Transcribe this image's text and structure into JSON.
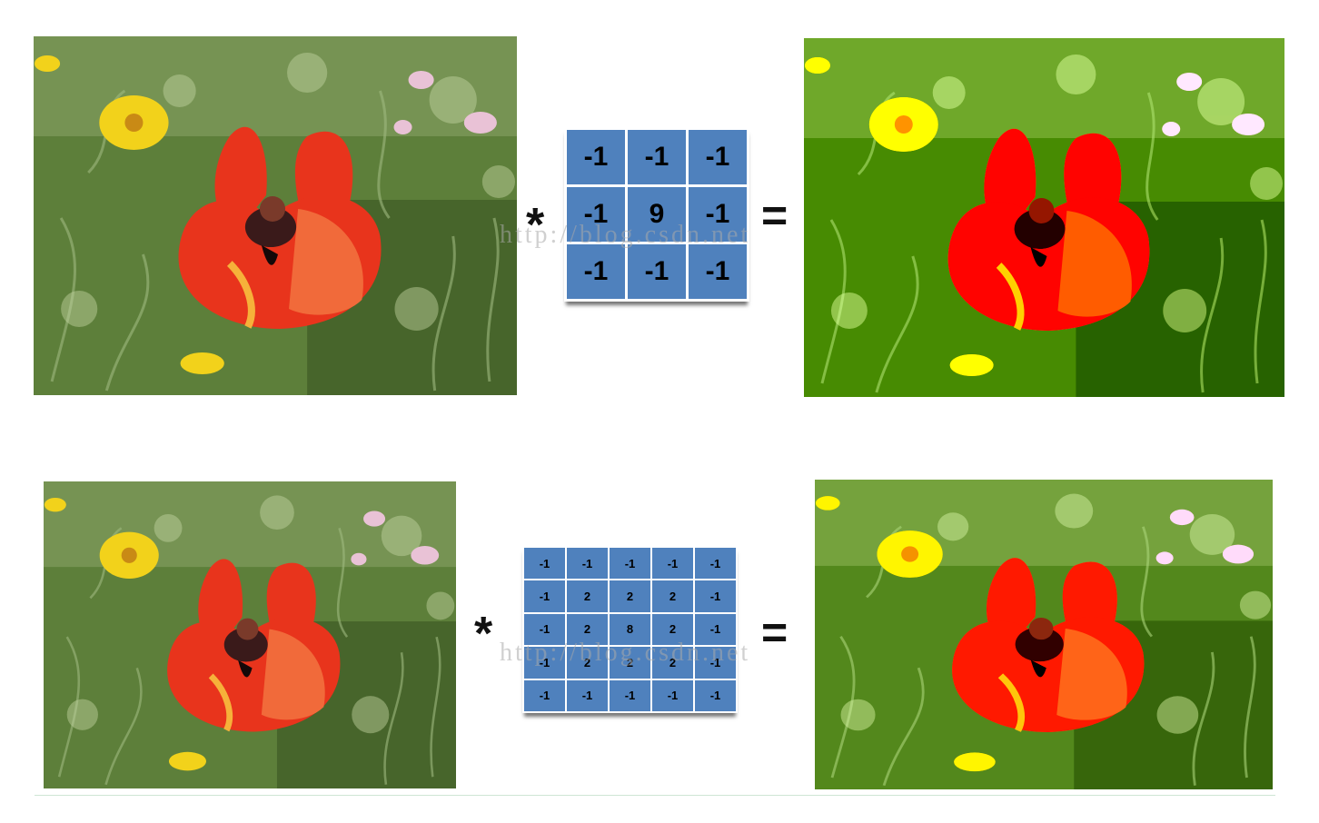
{
  "operators": {
    "convolve": "*",
    "equals": "="
  },
  "watermark": "http://blog.csdn.net",
  "kernel_3x3": [
    [
      "-1",
      "-1",
      "-1"
    ],
    [
      "-1",
      "9",
      "-1"
    ],
    [
      "-1",
      "-1",
      "-1"
    ]
  ],
  "kernel_5x5": [
    [
      "-1",
      "-1",
      "-1",
      "-1",
      "-1"
    ],
    [
      "-1",
      "2",
      "2",
      "2",
      "-1"
    ],
    [
      "-1",
      "2",
      "8",
      "2",
      "-1"
    ],
    [
      "-1",
      "2",
      "2",
      "2",
      "-1"
    ],
    [
      "-1",
      "-1",
      "-1",
      "-1",
      "-1"
    ]
  ],
  "colors": {
    "kernel_cell": "#4f81bd",
    "foliage": "#5d7f3a",
    "poppy": "#e8341c",
    "daisy": "#f2d21b"
  }
}
